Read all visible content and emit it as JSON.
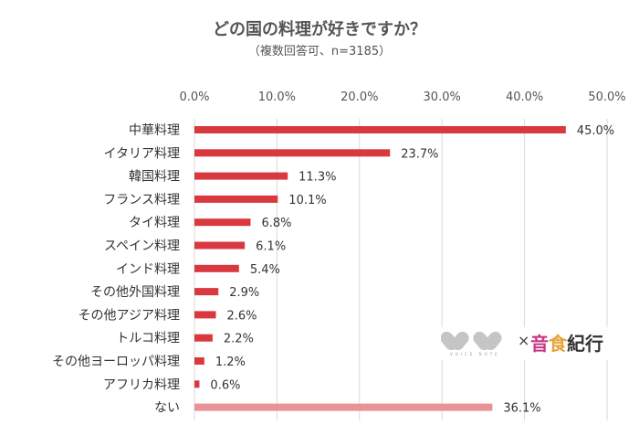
{
  "chart_data": {
    "type": "bar",
    "orientation": "horizontal",
    "title": "どの国の料理が好きですか？",
    "subtitle": "（複数回答可、n=3185）",
    "categories": [
      "中華料理",
      "イタリア料理",
      "韓国料理",
      "フランス料理",
      "タイ料理",
      "スペイン料理",
      "インド料理",
      "その他外国料理",
      "その他アジア料理",
      "トルコ料理",
      "その他ヨーロッパ料理",
      "アフリカ料理",
      "ない"
    ],
    "values": [
      45.0,
      23.7,
      11.3,
      10.1,
      6.8,
      6.1,
      5.4,
      2.9,
      2.6,
      2.2,
      1.2,
      0.6,
      36.1
    ],
    "data_labels": [
      "45.0%",
      "23.7%",
      "11.3%",
      "10.1%",
      "6.8%",
      "6.1%",
      "5.4%",
      "2.9%",
      "2.6%",
      "2.2%",
      "1.2%",
      "0.6%",
      "36.1%"
    ],
    "xlim": [
      0,
      50
    ],
    "x_ticks": [
      "0.0%",
      "10.0%",
      "20.0%",
      "30.0%",
      "40.0%",
      "50.0%"
    ],
    "x_axis_position": "top",
    "grid": true,
    "colors": {
      "bar": "#d9383e",
      "highlight_bar": "#e89396",
      "grid": "#d9d9d9"
    }
  },
  "logo": {
    "voice_note": "VOICE NOTE",
    "times": "×",
    "brand_chars": [
      "音",
      "食",
      "紀行"
    ],
    "brand_colors": [
      "#c8378a",
      "#e8a33a",
      "#333333"
    ]
  }
}
